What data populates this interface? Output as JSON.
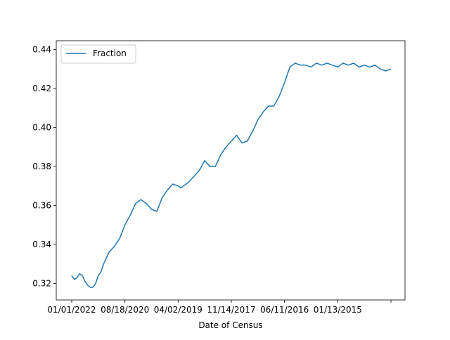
{
  "chart_data": {
    "type": "line",
    "title": "",
    "xlabel": "Date of Census",
    "ylabel": "",
    "x_tick_labels": [
      "01/01/2022",
      "08/18/2020",
      "04/02/2019",
      "11/14/2017",
      "06/11/2016",
      "01/13/2015",
      ""
    ],
    "ylim": [
      0.3115,
      0.4445
    ],
    "y_ticks": [
      0.32,
      0.34,
      0.36,
      0.38,
      0.4,
      0.42,
      0.44
    ],
    "y_tick_labels": [
      "0.32",
      "0.34",
      "0.36",
      "0.38",
      "0.40",
      "0.42",
      "0.44"
    ],
    "x_index_range": [
      0,
      6
    ],
    "legend": {
      "position": "top-left",
      "entries": [
        "Fraction"
      ]
    },
    "grid": false,
    "series": [
      {
        "name": "Fraction",
        "color": "#1f77b4",
        "x": [
          0,
          0.05,
          0.1,
          0.15,
          0.2,
          0.25,
          0.3,
          0.35,
          0.4,
          0.45,
          0.5,
          0.55,
          0.6,
          0.7,
          0.8,
          0.9,
          1.0,
          1.1,
          1.2,
          1.3,
          1.4,
          1.5,
          1.6,
          1.7,
          1.8,
          1.9,
          2.0,
          2.05,
          2.1,
          2.2,
          2.3,
          2.4,
          2.5,
          2.6,
          2.7,
          2.8,
          2.9,
          3.0,
          3.1,
          3.2,
          3.3,
          3.4,
          3.5,
          3.6,
          3.7,
          3.8,
          3.9,
          4.0,
          4.1,
          4.2,
          4.3,
          4.4,
          4.5,
          4.6,
          4.7,
          4.8,
          4.9,
          5.0,
          5.1,
          5.2,
          5.3,
          5.4,
          5.5,
          5.6,
          5.7,
          5.8,
          5.9,
          6.0
        ],
        "values": [
          0.324,
          0.322,
          0.323,
          0.325,
          0.324,
          0.321,
          0.319,
          0.318,
          0.318,
          0.32,
          0.324,
          0.326,
          0.33,
          0.336,
          0.339,
          0.343,
          0.35,
          0.355,
          0.361,
          0.363,
          0.361,
          0.358,
          0.357,
          0.364,
          0.368,
          0.371,
          0.37,
          0.369,
          0.37,
          0.372,
          0.375,
          0.378,
          0.383,
          0.38,
          0.38,
          0.386,
          0.39,
          0.393,
          0.396,
          0.392,
          0.393,
          0.398,
          0.404,
          0.408,
          0.411,
          0.411,
          0.416,
          0.423,
          0.431,
          0.433,
          0.432,
          0.432,
          0.431,
          0.433,
          0.432,
          0.433,
          0.432,
          0.431,
          0.433,
          0.432,
          0.433,
          0.431,
          0.432,
          0.431,
          0.432,
          0.43,
          0.429,
          0.43
        ]
      }
    ]
  }
}
